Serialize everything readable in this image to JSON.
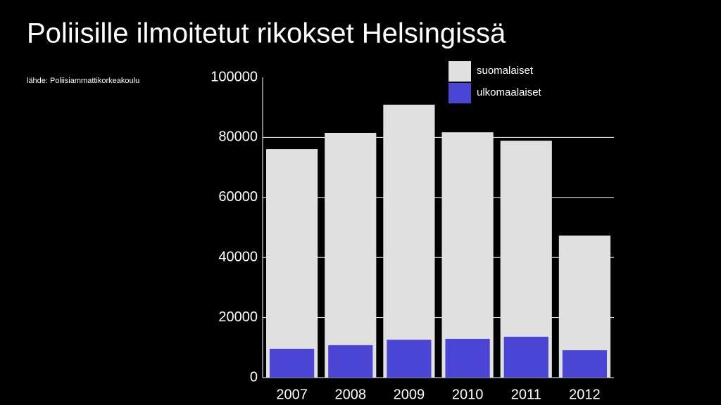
{
  "chart_data": {
    "type": "bar",
    "title": "Poliisille ilmoitetut rikokset Helsingissä",
    "source": "lähde: Poliisiammattikorkeakoulu",
    "categories": [
      "2007",
      "2008",
      "2009",
      "2010",
      "2011",
      "2012"
    ],
    "series": [
      {
        "name": "suomalaiset",
        "color": "#e0e0e0",
        "values": [
          76100,
          81500,
          90900,
          81700,
          78900,
          47300
        ]
      },
      {
        "name": "ulkomaalaiset",
        "color": "#4a45d4",
        "values": [
          9600,
          10800,
          12600,
          12900,
          13600,
          9100
        ]
      }
    ],
    "ylim": [
      0,
      100000
    ],
    "yticks": [
      0,
      20000,
      40000,
      60000,
      80000,
      100000
    ],
    "grid": true,
    "legend": "top-right"
  }
}
